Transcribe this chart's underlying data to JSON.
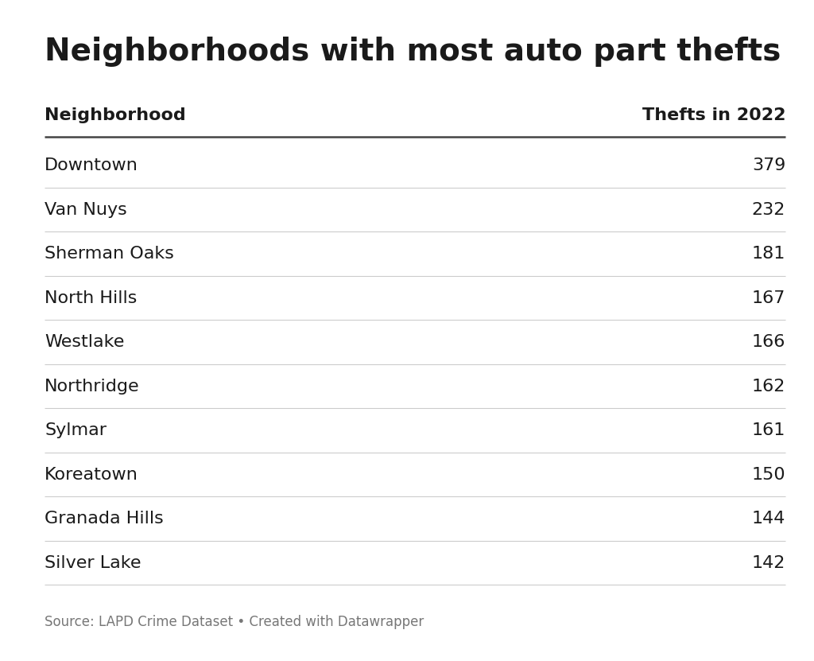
{
  "title": "Neighborhoods with most auto part thefts",
  "col_neighborhood": "Neighborhood",
  "col_thefts": "Thefts in 2022",
  "rows": [
    {
      "neighborhood": "Downtown",
      "thefts": 379
    },
    {
      "neighborhood": "Van Nuys",
      "thefts": 232
    },
    {
      "neighborhood": "Sherman Oaks",
      "thefts": 181
    },
    {
      "neighborhood": "North Hills",
      "thefts": 167
    },
    {
      "neighborhood": "Westlake",
      "thefts": 166
    },
    {
      "neighborhood": "Northridge",
      "thefts": 162
    },
    {
      "neighborhood": "Sylmar",
      "thefts": 161
    },
    {
      "neighborhood": "Koreatown",
      "thefts": 150
    },
    {
      "neighborhood": "Granada Hills",
      "thefts": 144
    },
    {
      "neighborhood": "Silver Lake",
      "thefts": 142
    }
  ],
  "source_text": "Source: LAPD Crime Dataset • Created with Datawrapper",
  "background_color": "#ffffff",
  "title_fontsize": 28,
  "header_fontsize": 16,
  "row_fontsize": 16,
  "source_fontsize": 12,
  "title_color": "#1a1a1a",
  "header_color": "#1a1a1a",
  "row_color": "#1a1a1a",
  "source_color": "#777777",
  "divider_color_heavy": "#444444",
  "divider_color_light": "#cccccc"
}
